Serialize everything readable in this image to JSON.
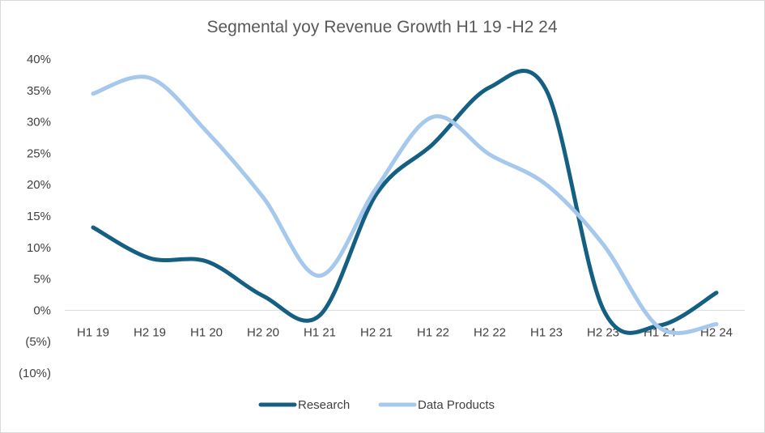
{
  "chart_data": {
    "type": "line",
    "title": "Segmental yoy Revenue Growth H1 19 -H2 24",
    "xlabel": "",
    "ylabel": "",
    "categories": [
      "H1 19",
      "H2 19",
      "H1 20",
      "H2 20",
      "H1 21",
      "H2 21",
      "H1 22",
      "H2 22",
      "H1 23",
      "H2 23",
      "H1 24",
      "H2 24"
    ],
    "y_ticks": [
      "40%",
      "35%",
      "30%",
      "25%",
      "20%",
      "15%",
      "10%",
      "5%",
      "0%",
      "(5%)",
      "(10%)"
    ],
    "y_tick_values": [
      40,
      35,
      30,
      25,
      20,
      15,
      10,
      5,
      0,
      -5,
      -10
    ],
    "ylim": [
      -10,
      40
    ],
    "grid": false,
    "legend_position": "bottom",
    "smooth": true,
    "series": [
      {
        "name": "Research",
        "color": "#156082",
        "values": [
          13.2,
          8.3,
          7.8,
          2.3,
          -0.8,
          18.5,
          26.5,
          35.5,
          35.0,
          0.2,
          -2.4,
          2.8
        ]
      },
      {
        "name": "Data Products",
        "color": "#a5c8ec",
        "values": [
          34.5,
          37.0,
          28.5,
          18.0,
          5.5,
          19.5,
          30.8,
          24.8,
          20.0,
          10.5,
          -2.8,
          -2.2
        ]
      }
    ]
  }
}
